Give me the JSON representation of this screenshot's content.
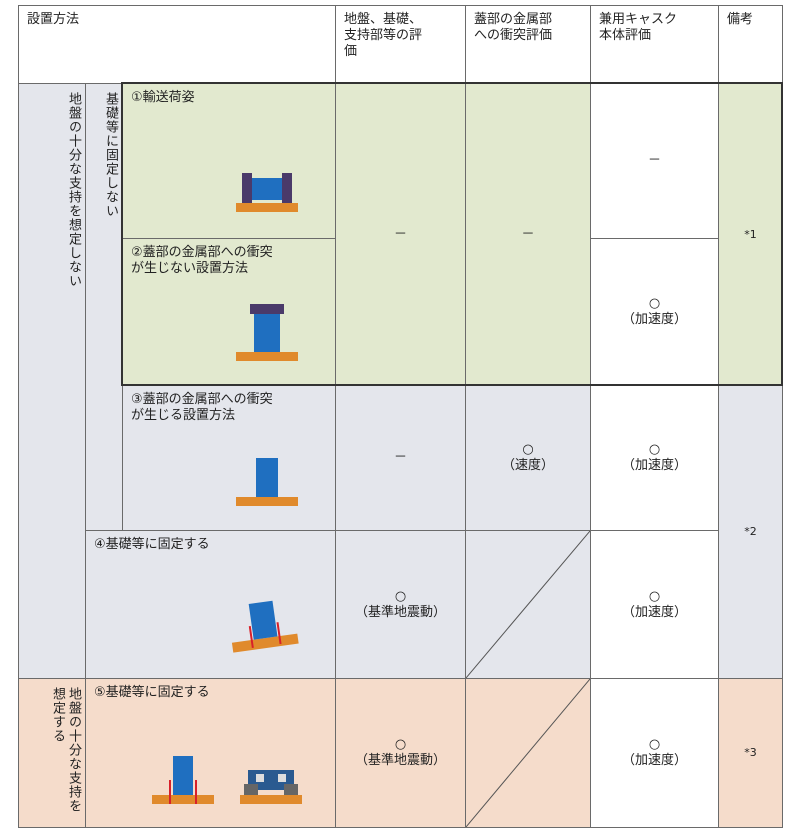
{
  "table": {
    "header": [
      "設置方法",
      "地盤、基礎、\n支持部等の評\n価",
      "蓋部の金属部\nへの衝突評価",
      "兼用キャスク\n本体評価",
      "備考"
    ],
    "groups": [
      "地盤の十分な支持を想定しない",
      "基礎等に固定しない",
      "地盤の十分な支持を想定する"
    ],
    "methods": [
      "①輸送荷姿",
      "②蓋部の金属部への衝突\nが生じない設置方法",
      "③蓋部の金属部への衝突\nが生じる設置方法",
      "④基礎等に固定する",
      "⑤基礎等に固定する"
    ],
    "ground": [
      "－",
      "－",
      "○\n（基準地震動）",
      "○\n（基準地震動）"
    ],
    "lid": [
      "－",
      "○\n（速度）"
    ],
    "body": [
      "－",
      "○\n（加速度）",
      "○\n（加速度）",
      "○\n（加速度）",
      "○\n（加速度）"
    ],
    "notes": [
      "*1",
      "*2",
      "*3"
    ]
  }
}
